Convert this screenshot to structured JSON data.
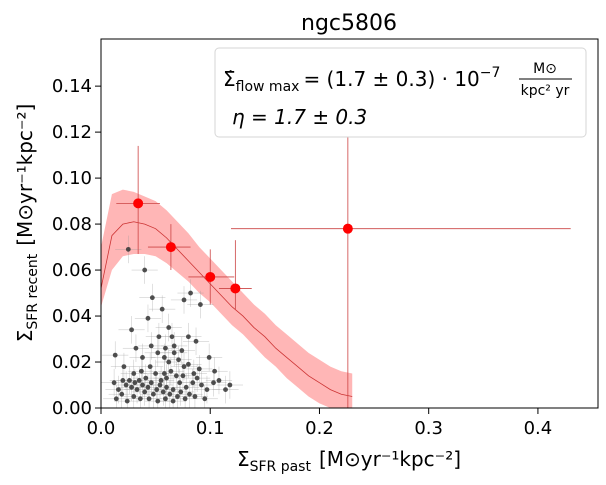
{
  "chart_data": {
    "type": "scatter",
    "title": "ngc5806",
    "xlabel": {
      "main": "Σ",
      "sub": "SFR past",
      "unit": "[M⊙yr⁻¹kpc⁻²]"
    },
    "ylabel": {
      "main": "Σ",
      "sub": "SFR recent",
      "unit": "[M⊙yr⁻¹kpc⁻²]"
    },
    "xlim": [
      0.0,
      0.455
    ],
    "ylim": [
      0.0,
      0.1605
    ],
    "xticks": [
      "0.0",
      "0.1",
      "0.2",
      "0.3",
      "0.4"
    ],
    "xtick_values": [
      0.0,
      0.1,
      0.2,
      0.3,
      0.4
    ],
    "yticks": [
      "0.00",
      "0.02",
      "0.04",
      "0.06",
      "0.08",
      "0.10",
      "0.12",
      "0.14"
    ],
    "ytick_values": [
      0.0,
      0.02,
      0.04,
      0.06,
      0.08,
      0.1,
      0.12,
      0.14
    ],
    "legend": {
      "line1": {
        "lhs": "Σ̇",
        "lhs_sub": "flow max",
        "rhs": "= (1.7 ± 0.3) · 10",
        "exp": "−7",
        "frac_num": "M⊙",
        "frac_den": "kpc² yr"
      },
      "line2": "η = 1.7 ± 0.3"
    },
    "colors": {
      "binned": "#ff0000",
      "band": "#ffb6b6",
      "model": "#cc3333",
      "pixels": "#333333"
    },
    "binned_points": [
      {
        "x": 0.034,
        "y": 0.089,
        "xerr": [
          0.02,
          0.02
        ],
        "yerr": [
          0.022,
          0.025
        ]
      },
      {
        "x": 0.064,
        "y": 0.07,
        "xerr": [
          0.021,
          0.018
        ],
        "yerr": [
          0.01,
          0.01
        ]
      },
      {
        "x": 0.1,
        "y": 0.057,
        "xerr": [
          0.02,
          0.022
        ],
        "yerr": [
          0.012,
          0.012
        ]
      },
      {
        "x": 0.123,
        "y": 0.052,
        "xerr": [
          0.015,
          0.015
        ],
        "yerr": [
          0.009,
          0.021
        ]
      },
      {
        "x": 0.226,
        "y": 0.078,
        "xerr": [
          0.107,
          0.204
        ],
        "yerr": [
          0.078,
          0.073
        ]
      }
    ],
    "model_line": {
      "x": [
        0.0,
        0.01,
        0.02,
        0.03,
        0.04,
        0.05,
        0.06,
        0.07,
        0.08,
        0.09,
        0.1,
        0.11,
        0.12,
        0.13,
        0.14,
        0.15,
        0.16,
        0.17,
        0.18,
        0.19,
        0.2,
        0.21,
        0.22,
        0.23
      ],
      "y": [
        0.052,
        0.075,
        0.08,
        0.081,
        0.08,
        0.078,
        0.074,
        0.069,
        0.064,
        0.059,
        0.054,
        0.049,
        0.044,
        0.04,
        0.035,
        0.031,
        0.026,
        0.022,
        0.018,
        0.014,
        0.011,
        0.008,
        0.006,
        0.005
      ]
    },
    "band": {
      "x": [
        0.0,
        0.01,
        0.02,
        0.03,
        0.04,
        0.05,
        0.06,
        0.07,
        0.08,
        0.09,
        0.1,
        0.11,
        0.12,
        0.13,
        0.14,
        0.15,
        0.16,
        0.17,
        0.18,
        0.19,
        0.2,
        0.21,
        0.22,
        0.23
      ],
      "upper": [
        0.07,
        0.093,
        0.095,
        0.094,
        0.092,
        0.09,
        0.086,
        0.081,
        0.076,
        0.07,
        0.065,
        0.06,
        0.055,
        0.05,
        0.045,
        0.041,
        0.036,
        0.032,
        0.028,
        0.024,
        0.021,
        0.018,
        0.016,
        0.015
      ],
      "lower": [
        0.044,
        0.06,
        0.066,
        0.067,
        0.067,
        0.066,
        0.063,
        0.059,
        0.055,
        0.05,
        0.046,
        0.041,
        0.036,
        0.032,
        0.027,
        0.022,
        0.018,
        0.013,
        0.009,
        0.005,
        0.002,
        0.0,
        0.0,
        0.0
      ]
    },
    "pixel_points": [
      {
        "x": 0.025,
        "y": 0.069
      },
      {
        "x": 0.04,
        "y": 0.06
      },
      {
        "x": 0.047,
        "y": 0.048
      },
      {
        "x": 0.043,
        "y": 0.039
      },
      {
        "x": 0.028,
        "y": 0.034
      },
      {
        "x": 0.082,
        "y": 0.05
      },
      {
        "x": 0.076,
        "y": 0.047
      },
      {
        "x": 0.056,
        "y": 0.043
      },
      {
        "x": 0.091,
        "y": 0.045
      },
      {
        "x": 0.062,
        "y": 0.035
      },
      {
        "x": 0.065,
        "y": 0.031
      },
      {
        "x": 0.067,
        "y": 0.027
      },
      {
        "x": 0.08,
        "y": 0.031
      },
      {
        "x": 0.087,
        "y": 0.029
      },
      {
        "x": 0.052,
        "y": 0.024
      },
      {
        "x": 0.058,
        "y": 0.022
      },
      {
        "x": 0.062,
        "y": 0.02
      },
      {
        "x": 0.067,
        "y": 0.024
      },
      {
        "x": 0.071,
        "y": 0.021
      },
      {
        "x": 0.074,
        "y": 0.025
      },
      {
        "x": 0.076,
        "y": 0.018
      },
      {
        "x": 0.08,
        "y": 0.019
      },
      {
        "x": 0.085,
        "y": 0.015
      },
      {
        "x": 0.09,
        "y": 0.017
      },
      {
        "x": 0.013,
        "y": 0.023
      },
      {
        "x": 0.021,
        "y": 0.018
      },
      {
        "x": 0.03,
        "y": 0.015
      },
      {
        "x": 0.037,
        "y": 0.016
      },
      {
        "x": 0.041,
        "y": 0.013
      },
      {
        "x": 0.045,
        "y": 0.018
      },
      {
        "x": 0.05,
        "y": 0.015
      },
      {
        "x": 0.055,
        "y": 0.012
      },
      {
        "x": 0.058,
        "y": 0.015
      },
      {
        "x": 0.06,
        "y": 0.013
      },
      {
        "x": 0.064,
        "y": 0.016
      },
      {
        "x": 0.069,
        "y": 0.014
      },
      {
        "x": 0.072,
        "y": 0.011
      },
      {
        "x": 0.075,
        "y": 0.014
      },
      {
        "x": 0.078,
        "y": 0.009
      },
      {
        "x": 0.084,
        "y": 0.011
      },
      {
        "x": 0.088,
        "y": 0.013
      },
      {
        "x": 0.092,
        "y": 0.01
      },
      {
        "x": 0.097,
        "y": 0.008
      },
      {
        "x": 0.103,
        "y": 0.011
      },
      {
        "x": 0.108,
        "y": 0.012
      },
      {
        "x": 0.114,
        "y": 0.008
      },
      {
        "x": 0.118,
        "y": 0.01
      },
      {
        "x": 0.012,
        "y": 0.011
      },
      {
        "x": 0.016,
        "y": 0.008
      },
      {
        "x": 0.02,
        "y": 0.012
      },
      {
        "x": 0.023,
        "y": 0.01
      },
      {
        "x": 0.026,
        "y": 0.012
      },
      {
        "x": 0.028,
        "y": 0.009
      },
      {
        "x": 0.031,
        "y": 0.011
      },
      {
        "x": 0.033,
        "y": 0.008
      },
      {
        "x": 0.035,
        "y": 0.012
      },
      {
        "x": 0.038,
        "y": 0.01
      },
      {
        "x": 0.04,
        "y": 0.007
      },
      {
        "x": 0.043,
        "y": 0.009
      },
      {
        "x": 0.046,
        "y": 0.011
      },
      {
        "x": 0.048,
        "y": 0.006
      },
      {
        "x": 0.051,
        "y": 0.008
      },
      {
        "x": 0.054,
        "y": 0.01
      },
      {
        "x": 0.057,
        "y": 0.007
      },
      {
        "x": 0.06,
        "y": 0.009
      },
      {
        "x": 0.063,
        "y": 0.006
      },
      {
        "x": 0.066,
        "y": 0.008
      },
      {
        "x": 0.07,
        "y": 0.005
      },
      {
        "x": 0.073,
        "y": 0.007
      },
      {
        "x": 0.077,
        "y": 0.004
      },
      {
        "x": 0.081,
        "y": 0.006
      },
      {
        "x": 0.03,
        "y": 0.005
      },
      {
        "x": 0.036,
        "y": 0.004
      },
      {
        "x": 0.044,
        "y": 0.004
      },
      {
        "x": 0.014,
        "y": 0.004
      },
      {
        "x": 0.019,
        "y": 0.006
      },
      {
        "x": 0.024,
        "y": 0.003
      },
      {
        "x": 0.052,
        "y": 0.003
      },
      {
        "x": 0.059,
        "y": 0.004
      },
      {
        "x": 0.066,
        "y": 0.003
      },
      {
        "x": 0.086,
        "y": 0.005
      },
      {
        "x": 0.095,
        "y": 0.004
      },
      {
        "x": 0.038,
        "y": 0.022
      },
      {
        "x": 0.046,
        "y": 0.027
      },
      {
        "x": 0.053,
        "y": 0.031
      },
      {
        "x": 0.059,
        "y": 0.026
      },
      {
        "x": 0.032,
        "y": 0.026
      },
      {
        "x": 0.104,
        "y": 0.016
      },
      {
        "x": 0.099,
        "y": 0.022
      }
    ]
  }
}
